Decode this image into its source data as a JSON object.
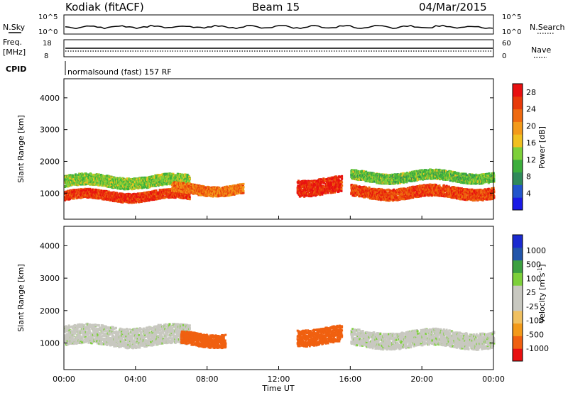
{
  "header": {
    "site": "Kodiak (fitACF)",
    "beam": "Beam 15",
    "date": "04/Mar/2015"
  },
  "panels": {
    "nsky": {
      "label": "N.Sky",
      "tick_top": "10^5",
      "tick_bottom": "10^0",
      "right_label": "N.Search",
      "right_tick_top": "10^5",
      "right_tick_bottom": "10^0"
    },
    "freq": {
      "label_top": "Freq.",
      "label_bottom": "[MHz]",
      "tick_top": "18",
      "tick_bottom": "8",
      "right_label": "Nave",
      "right_tick_top": "60",
      "right_tick_bottom": "0"
    },
    "cpid": {
      "label": "CPID",
      "value": "normalsound (fast) 157 RF"
    }
  },
  "colors": {
    "power": [
      "#1a1ae6",
      "#2255cc",
      "#2f8a5a",
      "#3cae3c",
      "#7dd03a",
      "#f0c020",
      "#f39a1a",
      "#ef6a10",
      "#e83a0a",
      "#e81010"
    ],
    "velocity": [
      "#e81010",
      "#f06010",
      "#f39a1a",
      "#f0c060",
      "#c8c8c0",
      "#c8c8c0",
      "#7dd03a",
      "#3ca040",
      "#2255aa",
      "#1a2ad0"
    ]
  },
  "chart_data": [
    {
      "type": "heatmap",
      "title": "Power",
      "ylabel": "Slant Range [km]",
      "xlabel": "Time UT",
      "ylim": [
        180,
        4600
      ],
      "xlim": [
        0,
        24
      ],
      "yticks": [
        "1000",
        "2000",
        "3000",
        "4000"
      ],
      "xticks": [
        "00:00",
        "04:00",
        "08:00",
        "12:00",
        "16:00",
        "20:00",
        "00:00"
      ],
      "colorbar": {
        "label": "Power [dB]",
        "ticks": [
          "4",
          "8",
          "12",
          "16",
          "20",
          "24",
          "28"
        ],
        "range": [
          0,
          30
        ]
      },
      "bands": [
        {
          "t": [
            0,
            7
          ],
          "range_center": 950,
          "width": 280,
          "value": 26
        },
        {
          "t": [
            0,
            7
          ],
          "range_center": 1400,
          "width": 350,
          "value": 13
        },
        {
          "t": [
            6,
            10
          ],
          "range_center": 1150,
          "width": 300,
          "value": 22
        },
        {
          "t": [
            13,
            15.5
          ],
          "range_center": 1250,
          "width": 500,
          "value": 27
        },
        {
          "t": [
            16,
            24
          ],
          "range_center": 1050,
          "width": 350,
          "value": 25
        },
        {
          "t": [
            16,
            24
          ],
          "range_center": 1550,
          "width": 300,
          "value": 12
        }
      ]
    },
    {
      "type": "heatmap",
      "title": "Velocity",
      "ylabel": "Slant Range [km]",
      "xlabel": "Time UT",
      "ylim": [
        180,
        4600
      ],
      "xlim": [
        0,
        24
      ],
      "yticks": [
        "1000",
        "2000",
        "3000",
        "4000"
      ],
      "xticks": [
        "00:00",
        "04:00",
        "08:00",
        "12:00",
        "16:00",
        "20:00",
        "00:00"
      ],
      "colorbar": {
        "label": "Velocity [m s^-1]",
        "ticks": [
          "1000",
          "500",
          "100",
          "25",
          "-25",
          "-100",
          "-500",
          "-1000"
        ]
      },
      "bands": [
        {
          "t": [
            0,
            7
          ],
          "range_center": 1250,
          "width": 600,
          "value": 0
        },
        {
          "t": [
            6.5,
            9
          ],
          "range_center": 1150,
          "width": 400,
          "value": -150
        },
        {
          "t": [
            13,
            15.5
          ],
          "range_center": 1250,
          "width": 500,
          "value": -200
        },
        {
          "t": [
            16,
            24
          ],
          "range_center": 1150,
          "width": 500,
          "value": 0
        }
      ]
    }
  ]
}
